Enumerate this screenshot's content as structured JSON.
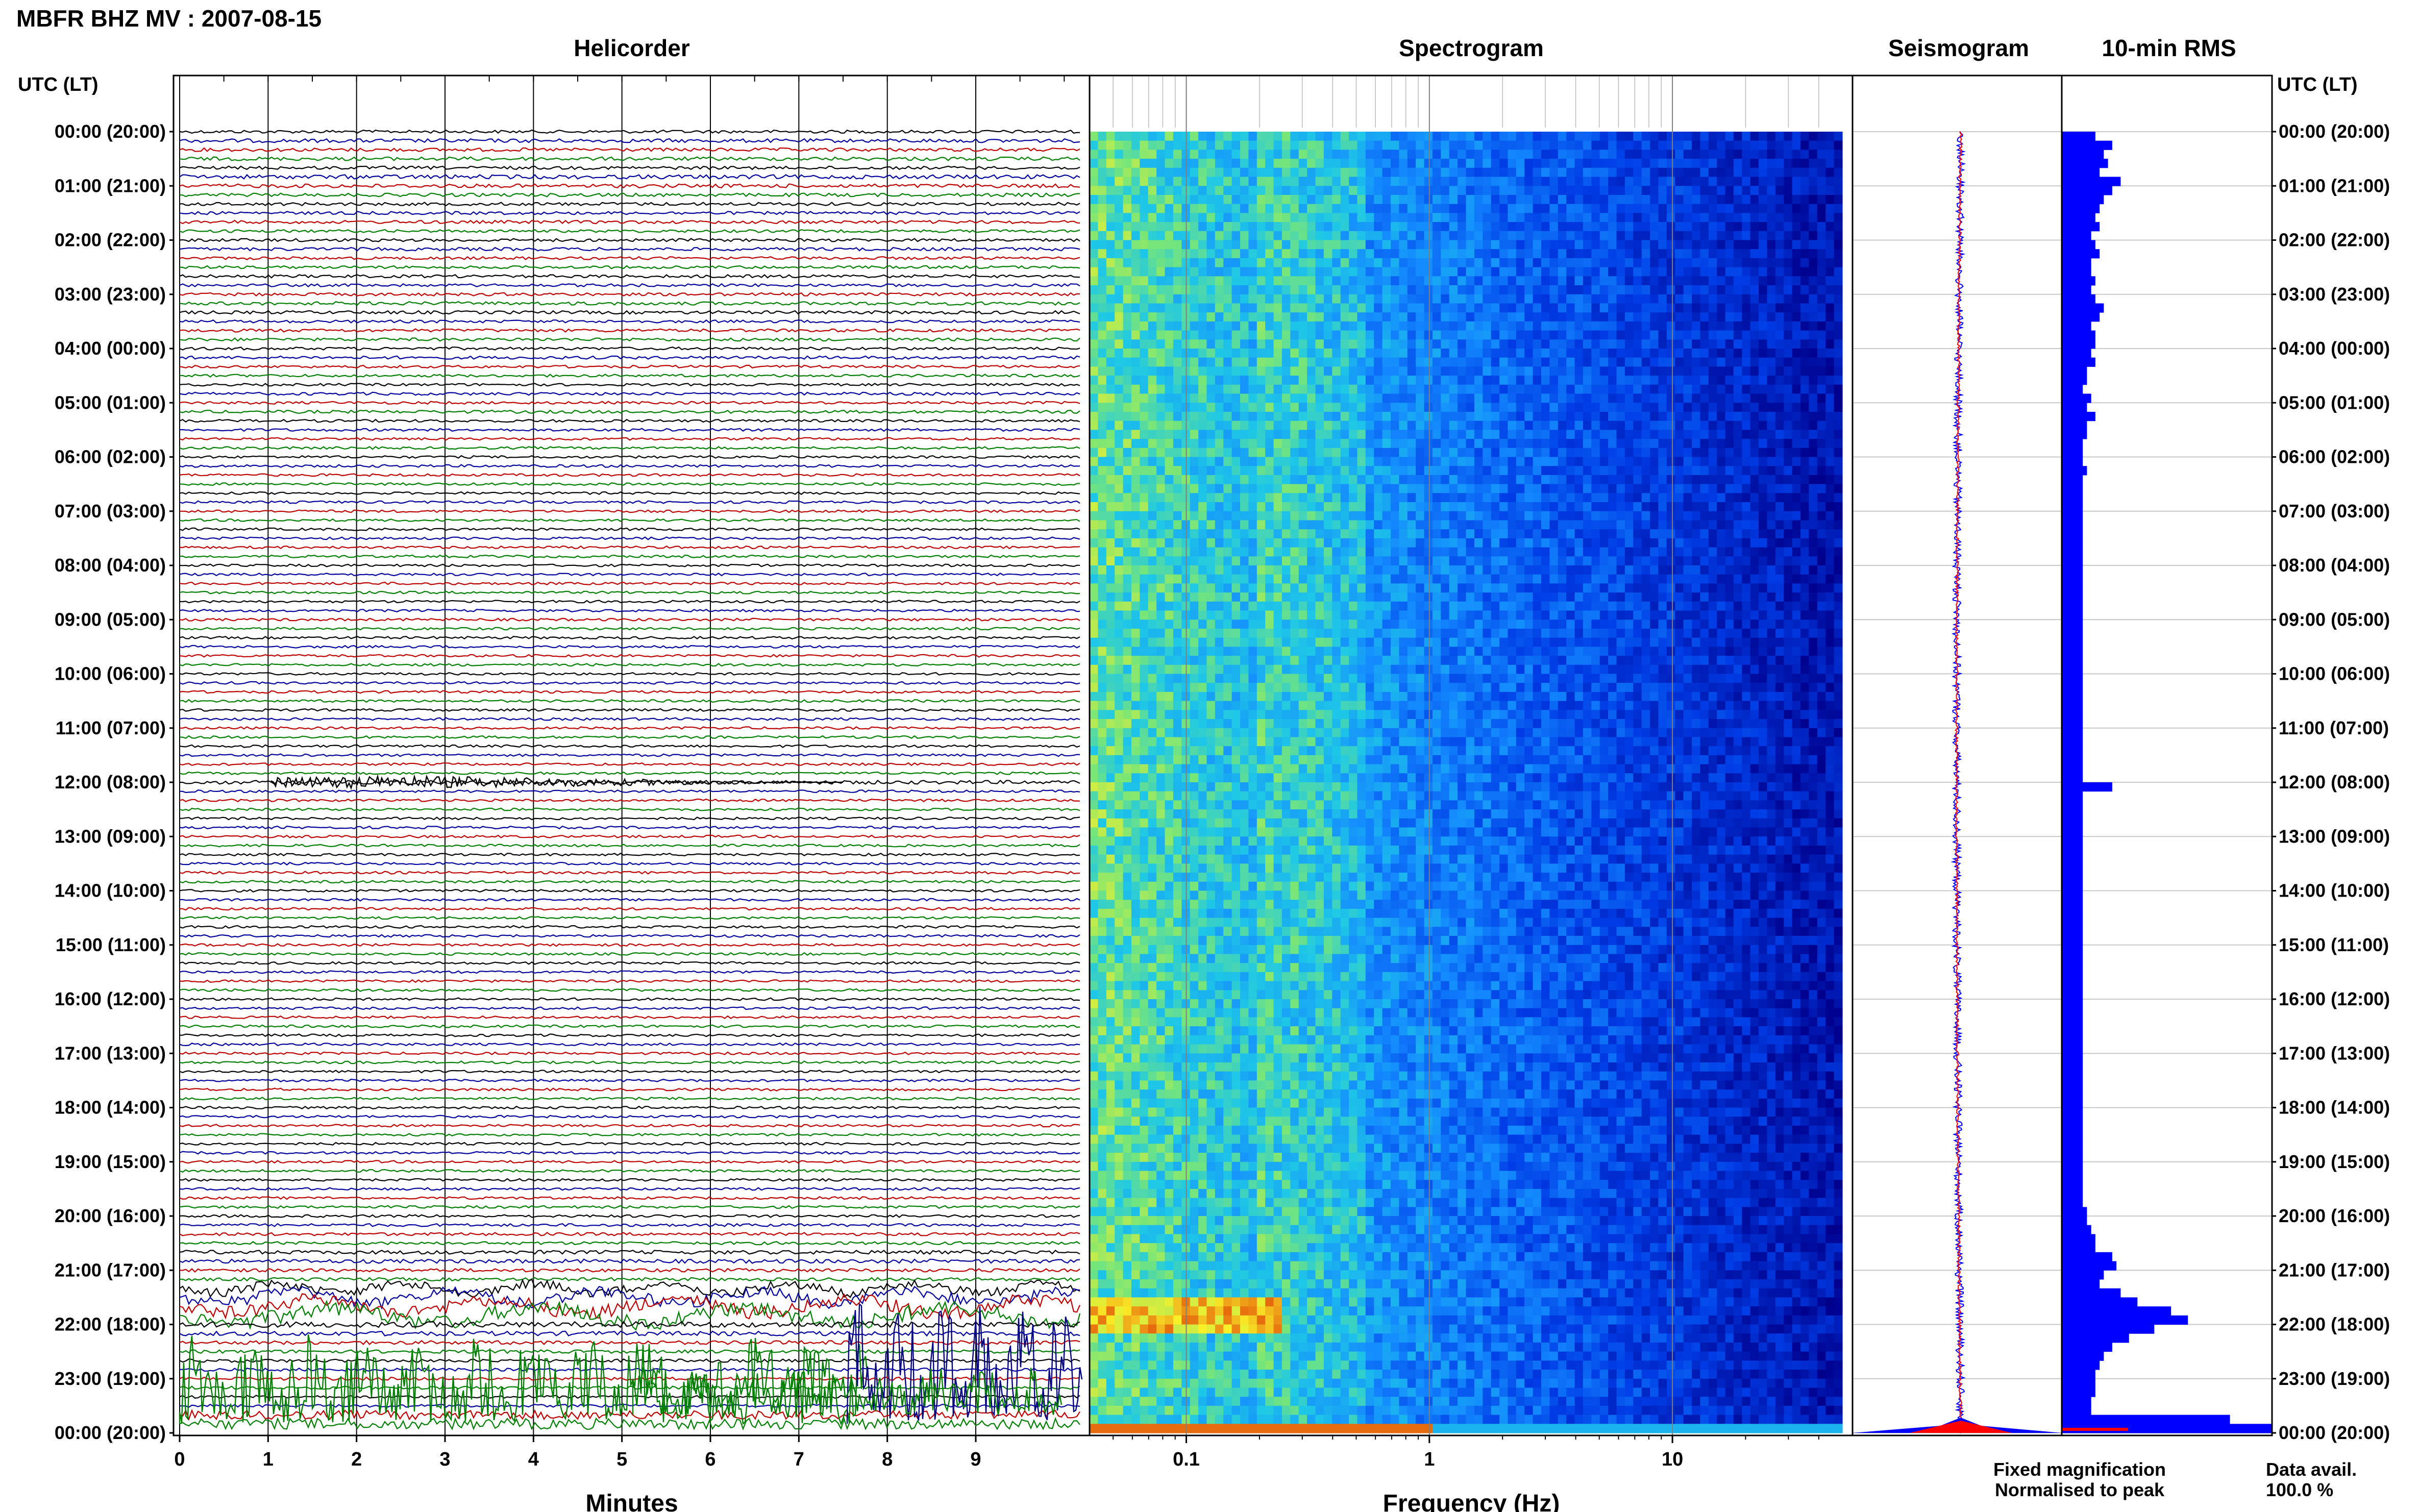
{
  "header": {
    "title": "MBFR BHZ MV : 2007-08-15",
    "left_axis_label": "UTC (LT)",
    "right_axis_label": "UTC (LT)"
  },
  "panels": {
    "helicorder": "Helicorder",
    "spectrogram": "Spectrogram",
    "seismogram": "Seismogram",
    "rms": "10-min RMS"
  },
  "time_ticks": [
    "00:00 (20:00)",
    "01:00 (21:00)",
    "02:00 (22:00)",
    "03:00 (23:00)",
    "04:00 (00:00)",
    "05:00 (01:00)",
    "06:00 (02:00)",
    "07:00 (03:00)",
    "08:00 (04:00)",
    "09:00 (05:00)",
    "10:00 (06:00)",
    "11:00 (07:00)",
    "12:00 (08:00)",
    "13:00 (09:00)",
    "14:00 (10:00)",
    "15:00 (11:00)",
    "16:00 (12:00)",
    "17:00 (13:00)",
    "18:00 (14:00)",
    "19:00 (15:00)",
    "20:00 (16:00)",
    "21:00 (17:00)",
    "22:00 (18:00)",
    "23:00 (19:00)",
    "00:00 (20:00)"
  ],
  "legend": {
    "fixed": "Fixed magnification",
    "normalised": "Normalised to peak",
    "fixed_color": "#0000ff",
    "normalised_color": "#ff0000",
    "data_avail_label": "Data avail.",
    "data_avail_value": "100.0 %"
  },
  "chart_data": [
    {
      "type": "line",
      "title": "Helicorder",
      "xlabel": "Minutes",
      "x_ticks": [
        "0",
        "1",
        "2",
        "3",
        "4",
        "5",
        "6",
        "7",
        "8",
        "9"
      ],
      "xlim": [
        0,
        10
      ],
      "ylabel": "UTC (LT)",
      "rows": 144,
      "row_minutes": 10,
      "trace_colors": [
        "#000000",
        "#0000a0",
        "#c00000",
        "#008000"
      ]
    },
    {
      "type": "heatmap",
      "title": "Spectrogram",
      "xlabel": "Frequency (Hz)",
      "x_ticks": [
        "0.1",
        "1",
        "10"
      ],
      "x_scale": "log",
      "xlim": [
        0.04,
        50
      ]
    },
    {
      "type": "line",
      "title": "Seismogram",
      "series": [
        {
          "name": "Fixed magnification",
          "color": "#0000ff"
        },
        {
          "name": "Normalised to peak",
          "color": "#ff0000"
        }
      ]
    },
    {
      "type": "bar",
      "title": "10-min RMS",
      "orientation": "horizontal",
      "color": "#0000ff",
      "values": [
        8,
        12,
        10,
        11,
        9,
        14,
        12,
        10,
        9,
        8,
        9,
        7,
        8,
        9,
        7,
        7,
        8,
        7,
        8,
        10,
        9,
        7,
        8,
        8,
        7,
        8,
        6,
        6,
        5,
        7,
        6,
        8,
        6,
        6,
        5,
        5,
        5,
        6,
        5,
        5,
        5,
        5,
        5,
        5,
        5,
        5,
        5,
        5,
        5,
        5,
        5,
        5,
        5,
        5,
        5,
        5,
        5,
        5,
        5,
        5,
        5,
        5,
        5,
        5,
        5,
        5,
        5,
        5,
        5,
        5,
        5,
        5,
        12,
        5,
        5,
        5,
        5,
        5,
        5,
        5,
        5,
        5,
        5,
        5,
        5,
        5,
        5,
        5,
        5,
        5,
        5,
        5,
        5,
        5,
        5,
        5,
        5,
        5,
        5,
        5,
        5,
        5,
        5,
        5,
        5,
        5,
        5,
        5,
        5,
        5,
        5,
        5,
        5,
        5,
        5,
        5,
        5,
        5,
        5,
        6,
        6,
        7,
        8,
        8,
        12,
        13,
        10,
        9,
        14,
        18,
        26,
        30,
        22,
        16,
        12,
        10,
        9,
        8,
        8,
        8,
        7,
        7,
        40,
        50
      ]
    }
  ]
}
